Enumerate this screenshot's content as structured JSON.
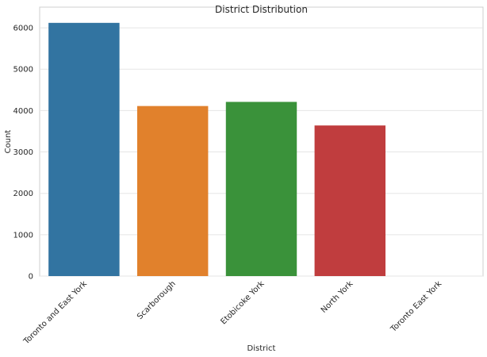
{
  "chart_data": {
    "type": "bar",
    "title": "District Distribution",
    "xlabel": "District",
    "ylabel": "Count",
    "categories": [
      "Toronto and East York",
      "Scarborough",
      "Etobicoke York",
      "North York",
      "Toronto East York"
    ],
    "values": [
      6120,
      4110,
      4210,
      3640,
      0
    ],
    "colors": [
      "#3274a1",
      "#e1812c",
      "#3a923a",
      "#c03d3e",
      "#9372b2"
    ],
    "ylim": [
      0,
      6500
    ],
    "yticks": [
      0,
      1000,
      2000,
      3000,
      4000,
      5000,
      6000
    ],
    "grid": true,
    "background": "#ffffff",
    "grid_color": "#e5e5e5"
  }
}
